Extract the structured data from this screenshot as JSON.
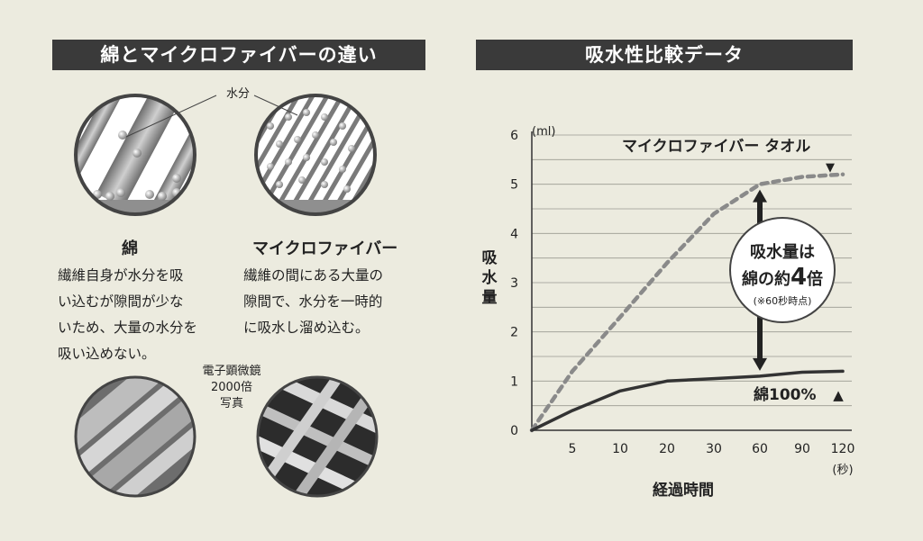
{
  "left": {
    "title": "綿とマイクロファイバーの違い",
    "moisture_label": "水分",
    "cotton": {
      "label": "綿",
      "desc": "繊維自身が水分を吸\nい込むが隙間が少な\nいため、大量の水分を\n吸い込めない。"
    },
    "microfiber": {
      "label": "マイクロファイバー",
      "desc": "繊維の間にある大量の\n隙間で、水分を一時的\nに吸水し溜め込む。"
    },
    "microscope_caption": "電子顕微鏡\n2000倍\n写真"
  },
  "right": {
    "title": "吸水性比較データ"
  },
  "chart_data": {
    "type": "line",
    "y_unit": "(ml)",
    "ylabel": "吸水量",
    "xlabel": "経過時間",
    "x_unit": "(秒)",
    "categories": [
      "0",
      "5",
      "10",
      "20",
      "30",
      "60",
      "90",
      "120"
    ],
    "x_ticks": [
      "5",
      "10",
      "20",
      "30",
      "60",
      "90",
      "120"
    ],
    "y_ticks": [
      "0",
      "1",
      "2",
      "3",
      "4",
      "5",
      "6"
    ],
    "ylim": [
      0,
      6
    ],
    "grid": true,
    "series": [
      {
        "name": "マイクロファイバー タオル",
        "values": [
          0,
          1.2,
          2.3,
          3.4,
          4.4,
          5.0,
          5.15,
          5.2
        ],
        "style": "dashed",
        "color": "#8a8a8a"
      },
      {
        "name": "綿100%",
        "values": [
          0,
          0.4,
          0.8,
          1.0,
          1.05,
          1.1,
          1.18,
          1.2
        ],
        "style": "solid",
        "color": "#333333"
      }
    ],
    "annotation": {
      "line1": "吸水量は",
      "line2a": "綿の約",
      "line2b": "4",
      "line2c": "倍",
      "note": "(※60秒時点)"
    },
    "markers": {
      "microfiber": "▼",
      "cotton": "▲"
    }
  }
}
